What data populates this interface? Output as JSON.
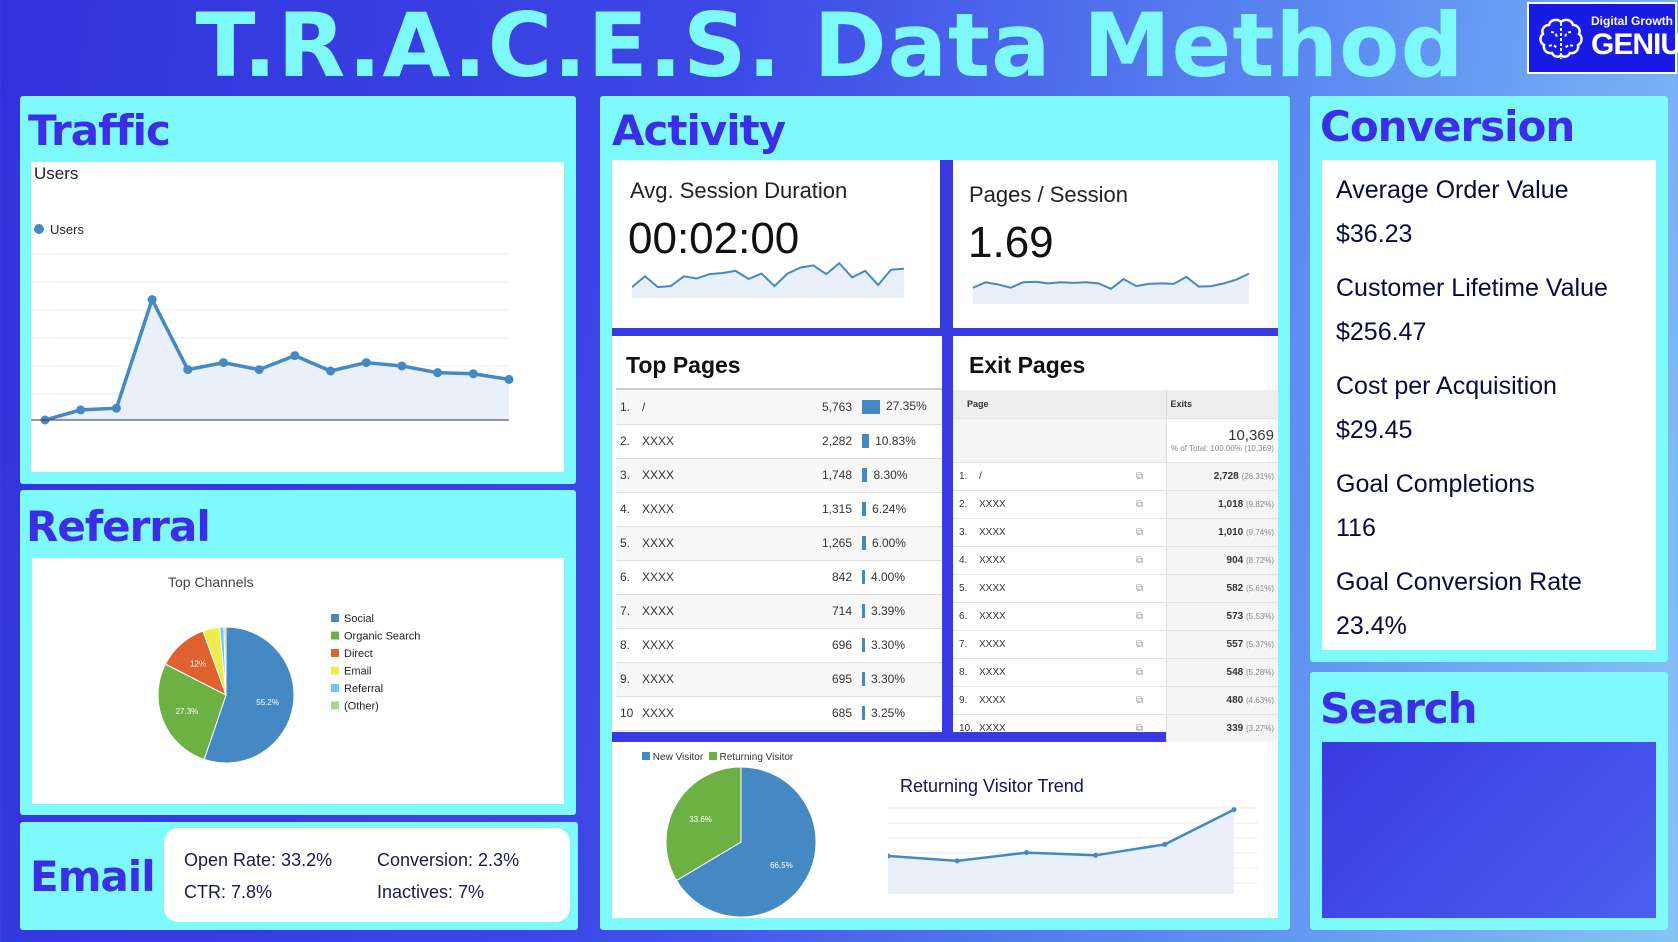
{
  "header": {
    "title": "T.R.A.C.E.S. Data Method",
    "logo_line1": "Digital Growth",
    "logo_line2": "GENIUS"
  },
  "colors": {
    "panel": "#7ef9fc",
    "heading": "#3b2ee6",
    "series": "#4589c4",
    "social": "#4589c4",
    "organic": "#6db144",
    "direct": "#de6230",
    "email": "#f0eb4c",
    "referral": "#6fc8f4",
    "other": "#a8d68c"
  },
  "traffic": {
    "title": "Traffic",
    "chart_title": "Users",
    "legend": "Users"
  },
  "referral": {
    "title": "Referral",
    "chart_title": "Top Channels"
  },
  "email": {
    "title": "Email",
    "open_rate": "Open Rate:  33.2%",
    "conversion": "Conversion: 2.3%",
    "ctr": "CTR: 7.8%",
    "inactives": "Inactives: 7%"
  },
  "activity": {
    "title": "Activity",
    "avg_session": {
      "label": "Avg. Session Duration",
      "value": "00:02:00"
    },
    "pages_session": {
      "label": "Pages / Session",
      "value": "1.69"
    },
    "top_pages": {
      "title": "Top Pages",
      "rows": [
        {
          "n": "1.",
          "page": "/",
          "views": "5,763",
          "pct": "27.35%",
          "share": 27.35
        },
        {
          "n": "2.",
          "page": "XXXX",
          "views": "2,282",
          "pct": "10.83%",
          "share": 10.83
        },
        {
          "n": "3.",
          "page": "XXXX",
          "views": "1,748",
          "pct": "8.30%",
          "share": 8.3
        },
        {
          "n": "4.",
          "page": "XXXX",
          "views": "1,315",
          "pct": "6.24%",
          "share": 6.24
        },
        {
          "n": "5.",
          "page": "XXXX",
          "views": "1,265",
          "pct": "6.00%",
          "share": 6.0
        },
        {
          "n": "6.",
          "page": "XXXX",
          "views": "842",
          "pct": "4.00%",
          "share": 4.0
        },
        {
          "n": "7.",
          "page": "XXXX",
          "views": "714",
          "pct": "3.39%",
          "share": 3.39
        },
        {
          "n": "8.",
          "page": "XXXX",
          "views": "696",
          "pct": "3.30%",
          "share": 3.3
        },
        {
          "n": "9.",
          "page": "XXXX",
          "views": "695",
          "pct": "3.30%",
          "share": 3.3
        },
        {
          "n": "10",
          "page": "XXXX",
          "views": "685",
          "pct": "3.25%",
          "share": 3.25
        }
      ]
    },
    "exit_pages": {
      "title": "Exit Pages",
      "col_page": "Page",
      "col_exits": "Exits",
      "total": "10,369",
      "total_note": "% of Total: 100.00% (10,369)",
      "rows": [
        {
          "n": "1.",
          "page": "/",
          "exits": "2,728",
          "pct": "(26.31%)"
        },
        {
          "n": "2.",
          "page": "XXXX",
          "exits": "1,018",
          "pct": "(9.82%)"
        },
        {
          "n": "3.",
          "page": "XXXX",
          "exits": "1,010",
          "pct": "(9.74%)"
        },
        {
          "n": "4.",
          "page": "XXXX",
          "exits": "904",
          "pct": "(8.72%)"
        },
        {
          "n": "5.",
          "page": "XXXX",
          "exits": "582",
          "pct": "(5.61%)"
        },
        {
          "n": "6.",
          "page": "XXXX",
          "exits": "573",
          "pct": "(5.53%)"
        },
        {
          "n": "7.",
          "page": "XXXX",
          "exits": "557",
          "pct": "(5.37%)"
        },
        {
          "n": "8.",
          "page": "XXXX",
          "exits": "548",
          "pct": "(5.28%)"
        },
        {
          "n": "9.",
          "page": "XXXX",
          "exits": "480",
          "pct": "(4.63%)"
        },
        {
          "n": "10.",
          "page": "XXXX",
          "exits": "339",
          "pct": "(3.27%)"
        }
      ]
    },
    "visitors": {
      "legend_new": "New Visitor",
      "legend_returning": "Returning Visitor",
      "trend_title": "Returning Visitor Trend"
    }
  },
  "conversion": {
    "title": "Conversion",
    "items": [
      {
        "label": "Average Order Value",
        "value": "$36.23"
      },
      {
        "label": "Customer Lifetime Value",
        "value": "$256.47"
      },
      {
        "label": "Cost per Acquisition",
        "value": "$29.45"
      },
      {
        "label": "Goal Completions",
        "value": "116"
      },
      {
        "label": "Goal Conversion Rate",
        "value": "23.4%"
      }
    ]
  },
  "search": {
    "title": "Search"
  },
  "chart_data": [
    {
      "type": "area",
      "title": "Users",
      "series": [
        {
          "name": "Users",
          "values": [
            0,
            0.36,
            0.42,
            4.3,
            1.8,
            2.05,
            1.8,
            2.3,
            1.75,
            2.05,
            1.93,
            1.69,
            1.65,
            1.45
          ]
        }
      ],
      "ylim": [
        0,
        6
      ],
      "grid": true,
      "legend": "top-left"
    },
    {
      "type": "pie",
      "title": "Top Channels",
      "categories": [
        "Social",
        "Organic Search",
        "Direct",
        "Email",
        "Referral",
        "(Other)"
      ],
      "values": [
        55.2,
        27.3,
        12,
        4,
        1,
        0.5
      ],
      "labels": [
        "55.2%",
        "27.3%",
        "12%",
        "",
        "",
        ""
      ],
      "legend": "right"
    },
    {
      "type": "area",
      "title": "Avg. Session Duration",
      "values": [
        2,
        4,
        2,
        2.2,
        4,
        3.6,
        4.4,
        4.6,
        5,
        3.5,
        4.5,
        2.2,
        4.5,
        5.6,
        6,
        4.4,
        6.4,
        3.8,
        5,
        2.4,
        5.2,
        5.4
      ]
    },
    {
      "type": "area",
      "title": "Pages / Session",
      "values": [
        3,
        4,
        3.6,
        3,
        4,
        4.1,
        3.8,
        4,
        3.9,
        4,
        3.8,
        2.8,
        4.6,
        3.3,
        3.7,
        3.8,
        3.7,
        5,
        3.2,
        3.3,
        3.8,
        4.5,
        5.6
      ]
    },
    {
      "type": "pie",
      "categories": [
        "New Visitor",
        "Returning Visitor"
      ],
      "values": [
        66.5,
        33.6
      ],
      "labels": [
        "66.5%",
        "33.6%"
      ],
      "legend": "top"
    },
    {
      "type": "area",
      "title": "Returning Visitor Trend",
      "values": [
        2.35,
        2.2,
        2.45,
        2.37,
        2.7,
        3.75
      ],
      "ylim": [
        1.2,
        3.8
      ],
      "grid": true
    }
  ]
}
